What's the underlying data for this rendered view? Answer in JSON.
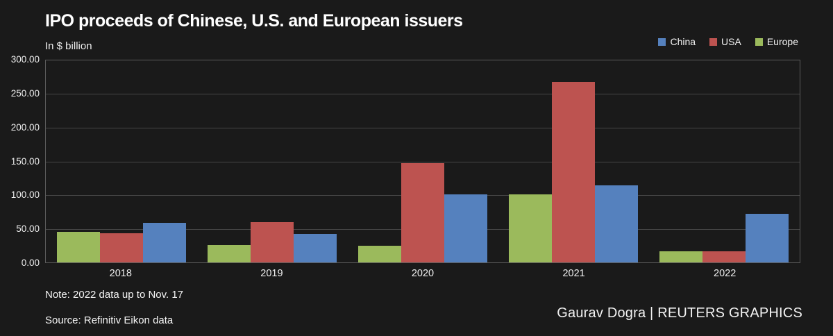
{
  "header": {
    "title": "IPO proceeds of Chinese, U.S. and European issuers",
    "subtitle": "In $ billion"
  },
  "legend": [
    {
      "label": "China",
      "color": "#5581be"
    },
    {
      "label": "USA",
      "color": "#bd5350"
    },
    {
      "label": "Europe",
      "color": "#9bba5c"
    }
  ],
  "chart_data": {
    "type": "bar",
    "title": "IPO proceeds of Chinese, U.S. and European issuers",
    "units_label": "In $ billion",
    "categories": [
      "2018",
      "2019",
      "2020",
      "2021",
      "2022"
    ],
    "series": [
      {
        "name": "Europe",
        "color": "#9bba5c",
        "values": [
          45,
          26,
          25,
          101,
          16
        ]
      },
      {
        "name": "USA",
        "color": "#bd5350",
        "values": [
          43,
          60,
          147,
          268,
          17
        ]
      },
      {
        "name": "China",
        "color": "#5581be",
        "values": [
          59,
          42,
          101,
          114,
          72
        ]
      }
    ],
    "ylim": [
      0,
      300
    ],
    "ytick_values": [
      300,
      250,
      200,
      150,
      100,
      50,
      0
    ],
    "ytick_labels": [
      "300.00",
      "250.00",
      "200.00",
      "150.00",
      "100.00",
      "50.00",
      "0.00"
    ],
    "grid": "horizontal",
    "legend_position": "top-right",
    "legend_order": [
      "China",
      "USA",
      "Europe"
    ]
  },
  "footer": {
    "note": "Note: 2022 data up to Nov. 17",
    "source": "Source: Refinitiv Eikon data",
    "credit": "Gaurav Dogra | REUTERS GRAPHICS"
  }
}
